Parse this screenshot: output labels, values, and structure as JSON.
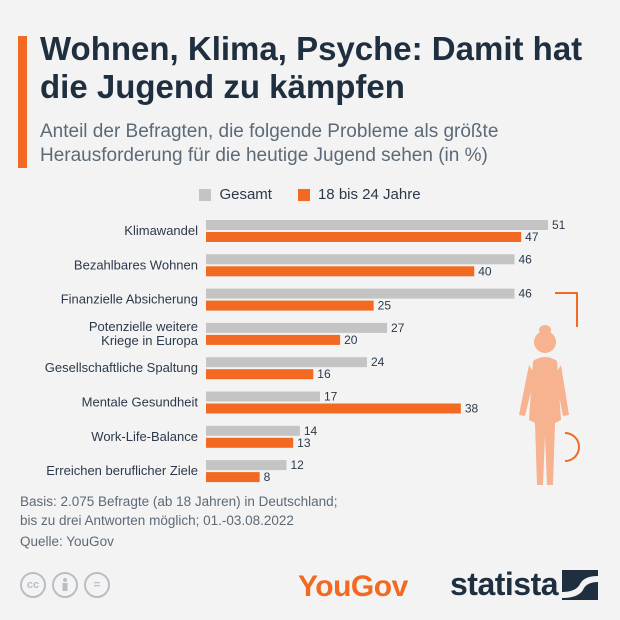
{
  "header": {
    "title": "Wohnen, Klima, Psyche: Damit hat die Jugend zu kämpfen",
    "subtitle": "Anteil der Befragten, die folgende Probleme als größte Herausforderung für die heutige Jugend sehen (in %)"
  },
  "colors": {
    "accent": "#f26a21",
    "gesamt": "#c4c4c4",
    "jugend": "#f26a21"
  },
  "chart_data": {
    "type": "bar",
    "orientation": "horizontal",
    "categories": [
      [
        "Klimawandel"
      ],
      [
        "Bezahlbares Wohnen"
      ],
      [
        "Finanzielle Absicherung"
      ],
      [
        "Potenzielle weitere",
        "Kriege in Europa"
      ],
      [
        "Gesellschaftliche Spaltung"
      ],
      [
        "Mentale Gesundheit"
      ],
      [
        "Work-Life-Balance"
      ],
      [
        "Erreichen beruflicher Ziele"
      ]
    ],
    "series": [
      {
        "name": "Gesamt",
        "color": "#c4c4c4",
        "values": [
          51,
          46,
          46,
          27,
          24,
          17,
          14,
          12
        ]
      },
      {
        "name": "18 bis 24 Jahre",
        "color": "#f26a21",
        "values": [
          47,
          40,
          25,
          20,
          16,
          38,
          13,
          8
        ]
      }
    ],
    "xlim": [
      0,
      51
    ],
    "legend_position": "top-center",
    "grid": false
  },
  "footer": {
    "basis_line1": "Basis: 2.075 Befragte (ab 18 Jahren) in Deutschland;",
    "basis_line2": "bis zu drei Antworten möglich; 01.-03.08.2022",
    "source": "Quelle: YouGov",
    "cc_icons": [
      "cc-icon",
      "by-icon",
      "nd-icon"
    ],
    "yougov_logo": "YouGov",
    "statista_logo": "statista"
  }
}
